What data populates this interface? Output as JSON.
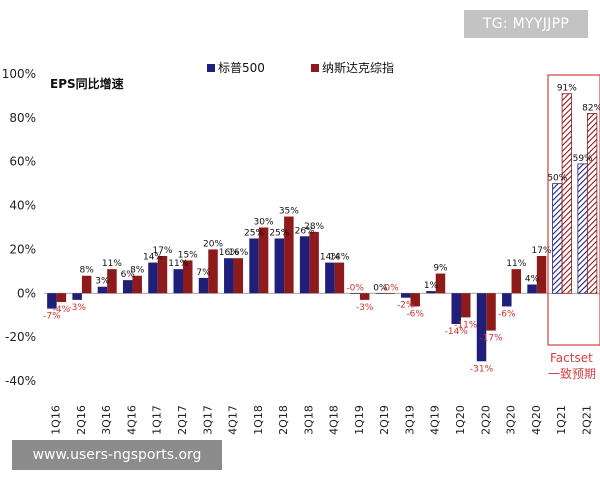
{
  "watermarks": {
    "top": "TG: MYYJJPP",
    "bottom": "www.users-ngsports.org"
  },
  "colors": {
    "sp500": "#1f1f7a",
    "nasdaq": "#8e1b1b",
    "negative_label": "#d03030",
    "forecast_box": "#d04040"
  },
  "chart_data": {
    "type": "bar",
    "title": "EPS同比增速",
    "categories": [
      "1Q16",
      "2Q16",
      "3Q16",
      "4Q16",
      "1Q17",
      "2Q17",
      "3Q17",
      "4Q17",
      "1Q18",
      "2Q18",
      "3Q18",
      "4Q18",
      "1Q19",
      "2Q19",
      "3Q19",
      "4Q19",
      "1Q20",
      "2Q20",
      "3Q20",
      "4Q20",
      "1Q21",
      "2Q21"
    ],
    "series": [
      {
        "name": "标普500",
        "values": [
          -7,
          -3,
          3,
          6,
          14,
          11,
          7,
          16,
          25,
          25,
          26,
          14,
          0,
          0,
          -2,
          1,
          -14,
          -31,
          -6,
          4,
          50,
          59
        ],
        "labels": [
          "-7%",
          "-3%",
          "3%",
          "6%",
          "14%",
          "11%",
          "7%",
          "16%",
          "25%",
          "25%",
          "26%",
          "14%",
          "-0%",
          "0%",
          "-2%",
          "1%",
          "-14%",
          "-31%",
          "-6%",
          "4%",
          "50%",
          "59%"
        ]
      },
      {
        "name": "纳斯达克综指",
        "values": [
          -4,
          8,
          11,
          8,
          17,
          15,
          20,
          16,
          30,
          35,
          28,
          14,
          -3,
          0,
          -6,
          9,
          -11,
          -17,
          11,
          17,
          91,
          82
        ],
        "labels": [
          "-4%",
          "8%",
          "11%",
          "8%",
          "17%",
          "15%",
          "20%",
          "16%",
          "30%",
          "35%",
          "28%",
          "14%",
          "-3%",
          "-0%",
          "-6%",
          "9%",
          "-11%",
          "-17%",
          "11%",
          "17%",
          "91%",
          "82%"
        ]
      }
    ],
    "ylim": [
      -40,
      100
    ],
    "yticks": [
      "-40%",
      "-20%",
      "0%",
      "20%",
      "40%",
      "60%",
      "80%",
      "100%"
    ],
    "ytick_values": [
      -40,
      -20,
      0,
      20,
      40,
      60,
      80,
      100
    ],
    "legend_position": "top-center",
    "grid": false,
    "forecast": {
      "categories": [
        "1Q21",
        "2Q21"
      ],
      "label_line1": "Factset",
      "label_line2": "一致预期"
    }
  }
}
